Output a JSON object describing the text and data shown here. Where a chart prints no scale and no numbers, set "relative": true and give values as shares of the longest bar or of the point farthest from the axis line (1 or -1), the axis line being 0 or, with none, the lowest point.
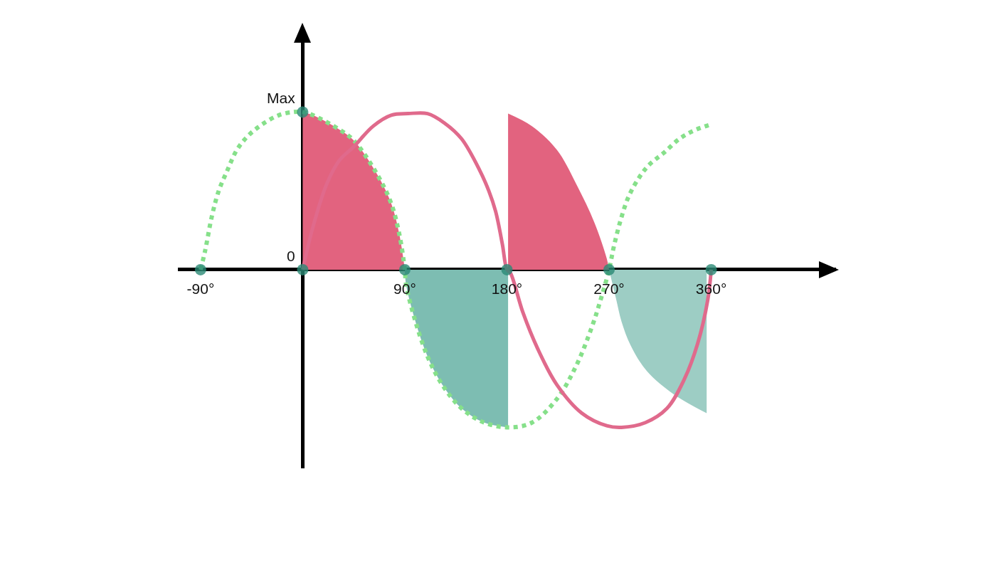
{
  "chart_data": {
    "type": "line",
    "relative": true,
    "xlim": [
      -110,
      470
    ],
    "xticks": [
      {
        "value": -90,
        "label": "-90°"
      },
      {
        "value": 90,
        "label": "90°"
      },
      {
        "value": 180,
        "label": "180°"
      },
      {
        "value": 270,
        "label": "270°"
      },
      {
        "value": 360,
        "label": "360°"
      }
    ],
    "series": [
      {
        "type": "area",
        "color": "#e2637f",
        "x": [
          0,
          9,
          32,
          45,
          66,
          78,
          85,
          90
        ],
        "values": [
          1.0,
          0.98,
          0.89,
          0.82,
          0.6,
          0.42,
          0.23,
          0
        ]
      },
      {
        "type": "area",
        "color": "#7dbdb2",
        "x": [
          90,
          91,
          99,
          110,
          123,
          140,
          160,
          181
        ],
        "values": [
          0,
          -0.09,
          -0.32,
          -0.55,
          -0.73,
          -0.88,
          -0.97,
          -1.0
        ]
      },
      {
        "type": "area",
        "color": "#e2637f",
        "x": [
          181,
          202,
          224,
          242,
          257,
          268,
          270
        ],
        "values": [
          0.99,
          0.91,
          0.76,
          0.53,
          0.3,
          0.07,
          0
        ]
      },
      {
        "type": "area",
        "color": "#9dcdc4",
        "x": [
          270,
          276,
          281,
          289,
          303,
          327,
          356
        ],
        "values": [
          0,
          -0.18,
          -0.33,
          -0.48,
          -0.64,
          -0.79,
          -0.91
        ]
      },
      {
        "color": "#86e08a",
        "line_style": "dotted",
        "marker": "none",
        "x": [
          -90,
          -86,
          -80,
          -74,
          -67,
          -58,
          -48,
          -36,
          -21,
          -8,
          0,
          9,
          32,
          45,
          66,
          78,
          85,
          90,
          91,
          99,
          110,
          123,
          140,
          160,
          182,
          202,
          224,
          241,
          255,
          263,
          270,
          274,
          280,
          287,
          297,
          306,
          318,
          332,
          344,
          359
        ],
        "values": [
          0,
          0.12,
          0.34,
          0.5,
          0.62,
          0.76,
          0.85,
          0.92,
          0.98,
          1.0,
          1.0,
          0.98,
          0.89,
          0.82,
          0.6,
          0.42,
          0.23,
          0,
          -0.09,
          -0.32,
          -0.55,
          -0.73,
          -0.88,
          -0.97,
          -1.0,
          -0.97,
          -0.82,
          -0.61,
          -0.36,
          -0.18,
          0,
          0.14,
          0.31,
          0.46,
          0.59,
          0.67,
          0.74,
          0.83,
          0.88,
          0.92
        ]
      },
      {
        "color": "#e06a8c",
        "line_style": "solid",
        "marker": "none",
        "x": [
          0,
          9,
          21,
          32,
          45,
          62,
          78,
          93,
          110,
          125,
          140,
          156,
          164,
          170,
          176,
          180,
          183,
          194,
          207,
          224,
          246,
          268,
          281,
          302,
          321,
          336,
          348,
          357,
          360
        ],
        "values": [
          0,
          0.27,
          0.54,
          0.69,
          0.78,
          0.91,
          0.98,
          0.99,
          0.99,
          0.93,
          0.83,
          0.63,
          0.5,
          0.37,
          0.16,
          0,
          -0.02,
          -0.27,
          -0.5,
          -0.73,
          -0.91,
          -0.99,
          -1.0,
          -0.97,
          -0.88,
          -0.7,
          -0.47,
          -0.19,
          0
        ]
      },
      {
        "type": "scatter",
        "color": "#2a8a76",
        "marker": "circle",
        "x": [
          -90,
          0,
          0,
          90,
          180,
          270,
          360
        ],
        "values": [
          0,
          0,
          1,
          0,
          0,
          0,
          0
        ]
      }
    ],
    "annotations": [
      {
        "text": "Max",
        "x": 0,
        "y": 1
      },
      {
        "text": "0",
        "x": 0,
        "y": 0
      }
    ]
  }
}
